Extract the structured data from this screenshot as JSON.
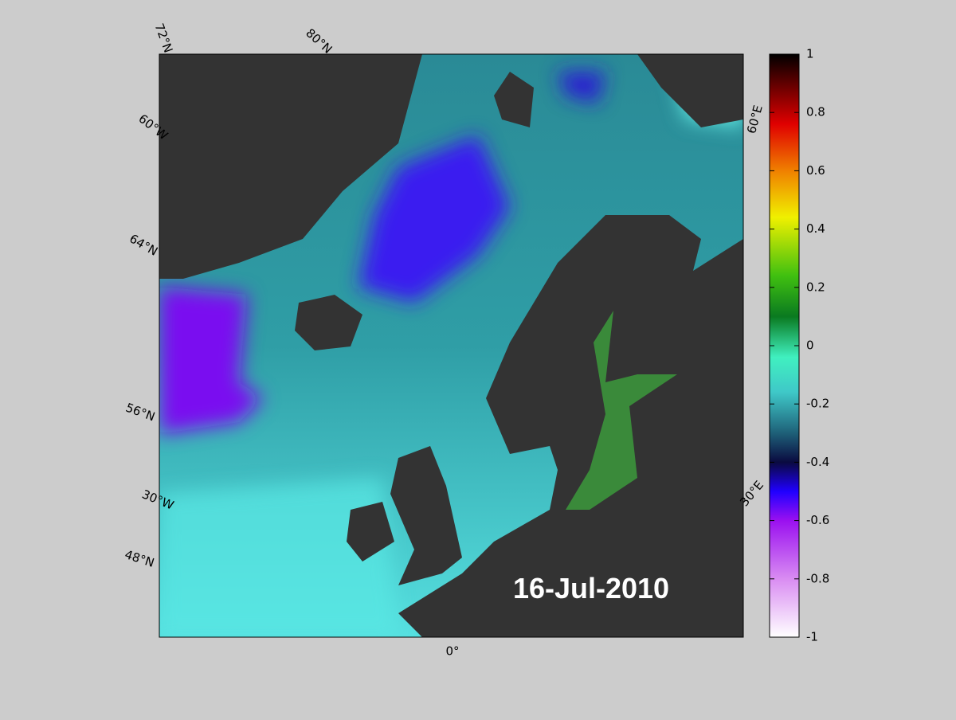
{
  "map": {
    "date": "16-Jul-2010",
    "graticule_labels": [
      "72°N",
      "80°N",
      "60°W",
      "64°N",
      "56°N",
      "30°W",
      "48°N",
      "0°",
      "30°E",
      "60°E"
    ]
  },
  "colorbar": {
    "lim": [
      -1,
      1
    ],
    "ticks": [
      -1,
      -0.8,
      -0.6,
      -0.4,
      -0.2,
      0,
      0.2,
      0.4,
      0.6,
      0.8,
      1
    ]
  }
}
